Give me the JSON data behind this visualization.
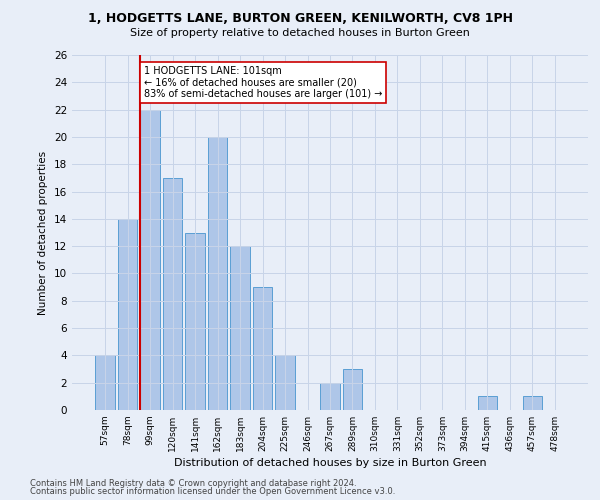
{
  "title1": "1, HODGETTS LANE, BURTON GREEN, KENILWORTH, CV8 1PH",
  "title2": "Size of property relative to detached houses in Burton Green",
  "xlabel": "Distribution of detached houses by size in Burton Green",
  "ylabel": "Number of detached properties",
  "bar_labels": [
    "57sqm",
    "78sqm",
    "99sqm",
    "120sqm",
    "141sqm",
    "162sqm",
    "183sqm",
    "204sqm",
    "225sqm",
    "246sqm",
    "267sqm",
    "289sqm",
    "310sqm",
    "331sqm",
    "352sqm",
    "373sqm",
    "394sqm",
    "415sqm",
    "436sqm",
    "457sqm",
    "478sqm"
  ],
  "bar_values": [
    4,
    14,
    22,
    17,
    13,
    20,
    12,
    9,
    4,
    0,
    2,
    3,
    0,
    0,
    0,
    0,
    0,
    1,
    0,
    1,
    0
  ],
  "bar_color": "#aec6e8",
  "bar_edge_color": "#5a9fd4",
  "highlight_index": 2,
  "vline_color": "#cc0000",
  "annotation_text": "1 HODGETTS LANE: 101sqm\n← 16% of detached houses are smaller (20)\n83% of semi-detached houses are larger (101) →",
  "annotation_box_color": "#ffffff",
  "annotation_box_edge": "#cc0000",
  "ylim": [
    0,
    26
  ],
  "yticks": [
    0,
    2,
    4,
    6,
    8,
    10,
    12,
    14,
    16,
    18,
    20,
    22,
    24,
    26
  ],
  "footer1": "Contains HM Land Registry data © Crown copyright and database right 2024.",
  "footer2": "Contains public sector information licensed under the Open Government Licence v3.0.",
  "bg_color": "#e8eef8",
  "grid_color": "#c8d4e8"
}
